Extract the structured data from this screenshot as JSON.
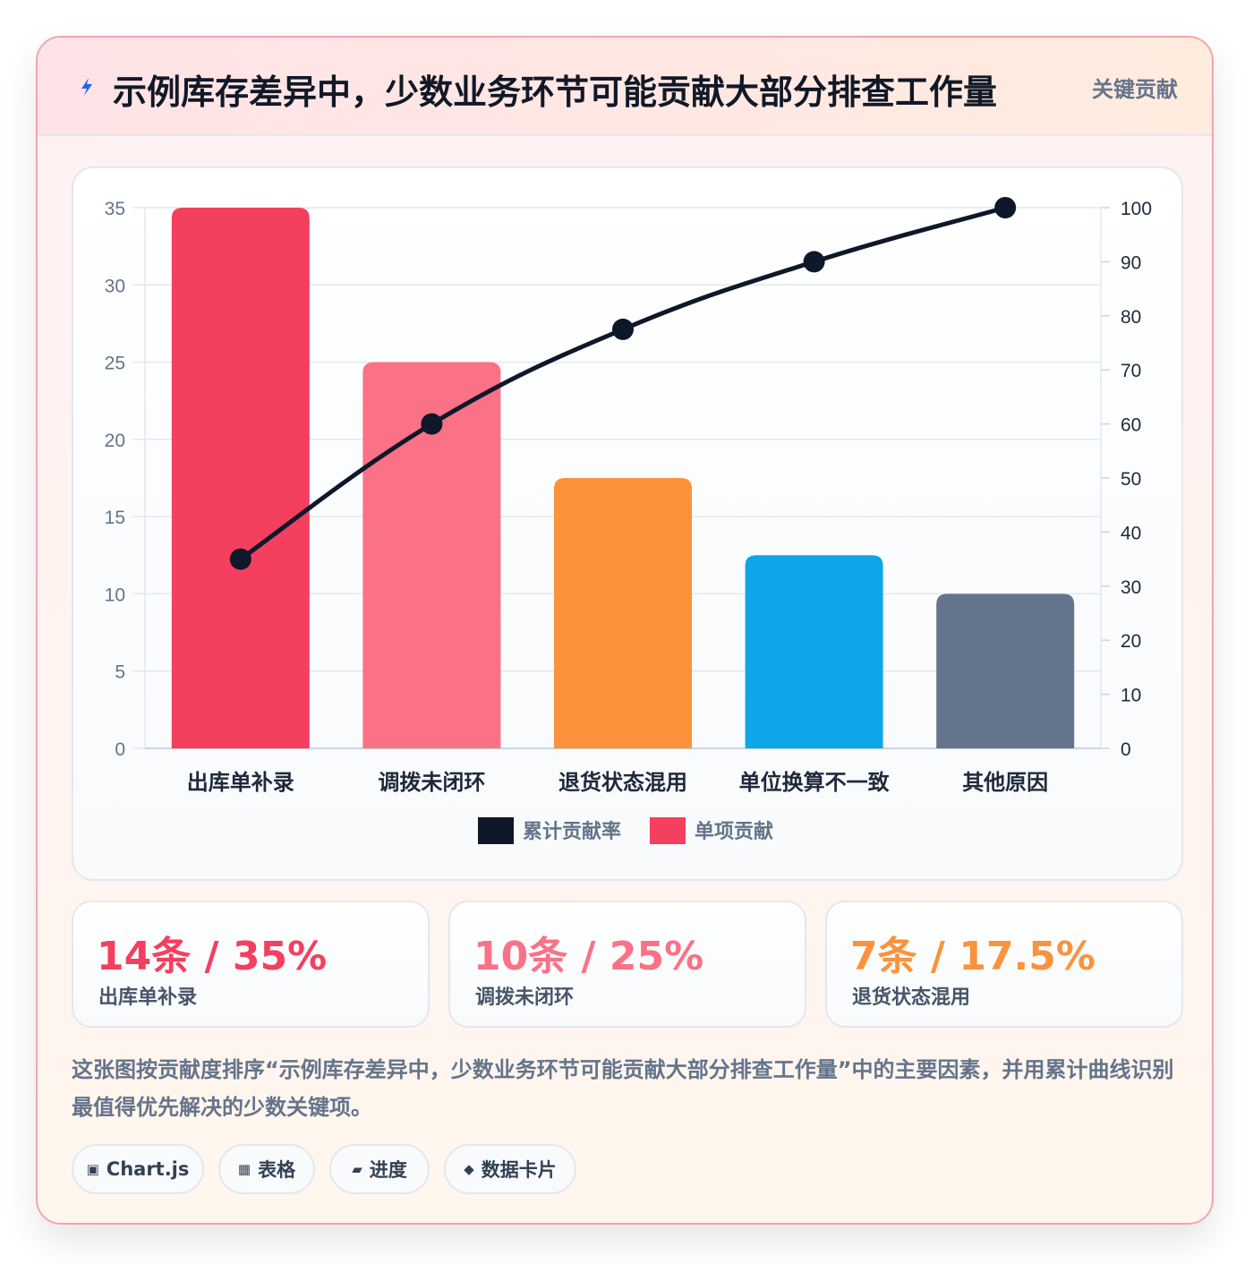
{
  "header": {
    "title": "示例库存差异中，少数业务环节可能贡献大部分排查工作量",
    "tag": "关键贡献"
  },
  "chart_data": {
    "type": "bar",
    "categories": [
      "出库单补录",
      "调拨未闭环",
      "退货状态混用",
      "单位换算不一致",
      "其他原因"
    ],
    "series": [
      {
        "name": "单项贡献",
        "type": "bar",
        "axis": "left",
        "values": [
          35,
          25,
          17.5,
          12.5,
          10
        ],
        "colors": [
          "#f43f5e",
          "#fb7185",
          "#fb923c",
          "#0ea5e9",
          "#64748b"
        ]
      },
      {
        "name": "累计贡献率",
        "type": "line",
        "axis": "right",
        "values": [
          35,
          60,
          77.5,
          90,
          100
        ],
        "color": "#0f172a"
      }
    ],
    "y_left": {
      "min": 0,
      "max": 35,
      "ticks": [
        0,
        5,
        10,
        15,
        20,
        25,
        30,
        35
      ]
    },
    "y_right": {
      "min": 0,
      "max": 100,
      "ticks": [
        0,
        10,
        20,
        30,
        40,
        50,
        60,
        70,
        80,
        90,
        100
      ]
    },
    "legend": [
      {
        "label": "累计贡献率",
        "color": "#0f172a"
      },
      {
        "label": "单项贡献",
        "color": "#f43f5e"
      }
    ],
    "legend_position": "bottom",
    "grid": true
  },
  "stats": [
    {
      "value": "14条 / 35%",
      "label": "出库单补录",
      "color": "#f43f5e"
    },
    {
      "value": "10条 / 25%",
      "label": "调拨未闭环",
      "color": "#fb7185"
    },
    {
      "value": "7条 / 17.5%",
      "label": "退货状态混用",
      "color": "#fb923c"
    }
  ],
  "description": "这张图按贡献度排序“示例库存差异中，少数业务环节可能贡献大部分排查工作量”中的主要因素，并用累计曲线识别最值得优先解决的少数关键项。",
  "pills": [
    {
      "icon": "▣",
      "icon_name": "chart-icon",
      "label": "Chart.js"
    },
    {
      "icon": "▦",
      "icon_name": "table-icon",
      "label": "表格"
    },
    {
      "icon": "▰",
      "icon_name": "progress-icon",
      "label": "进度"
    },
    {
      "icon": "◆",
      "icon_name": "card-icon",
      "label": "数据卡片"
    }
  ]
}
